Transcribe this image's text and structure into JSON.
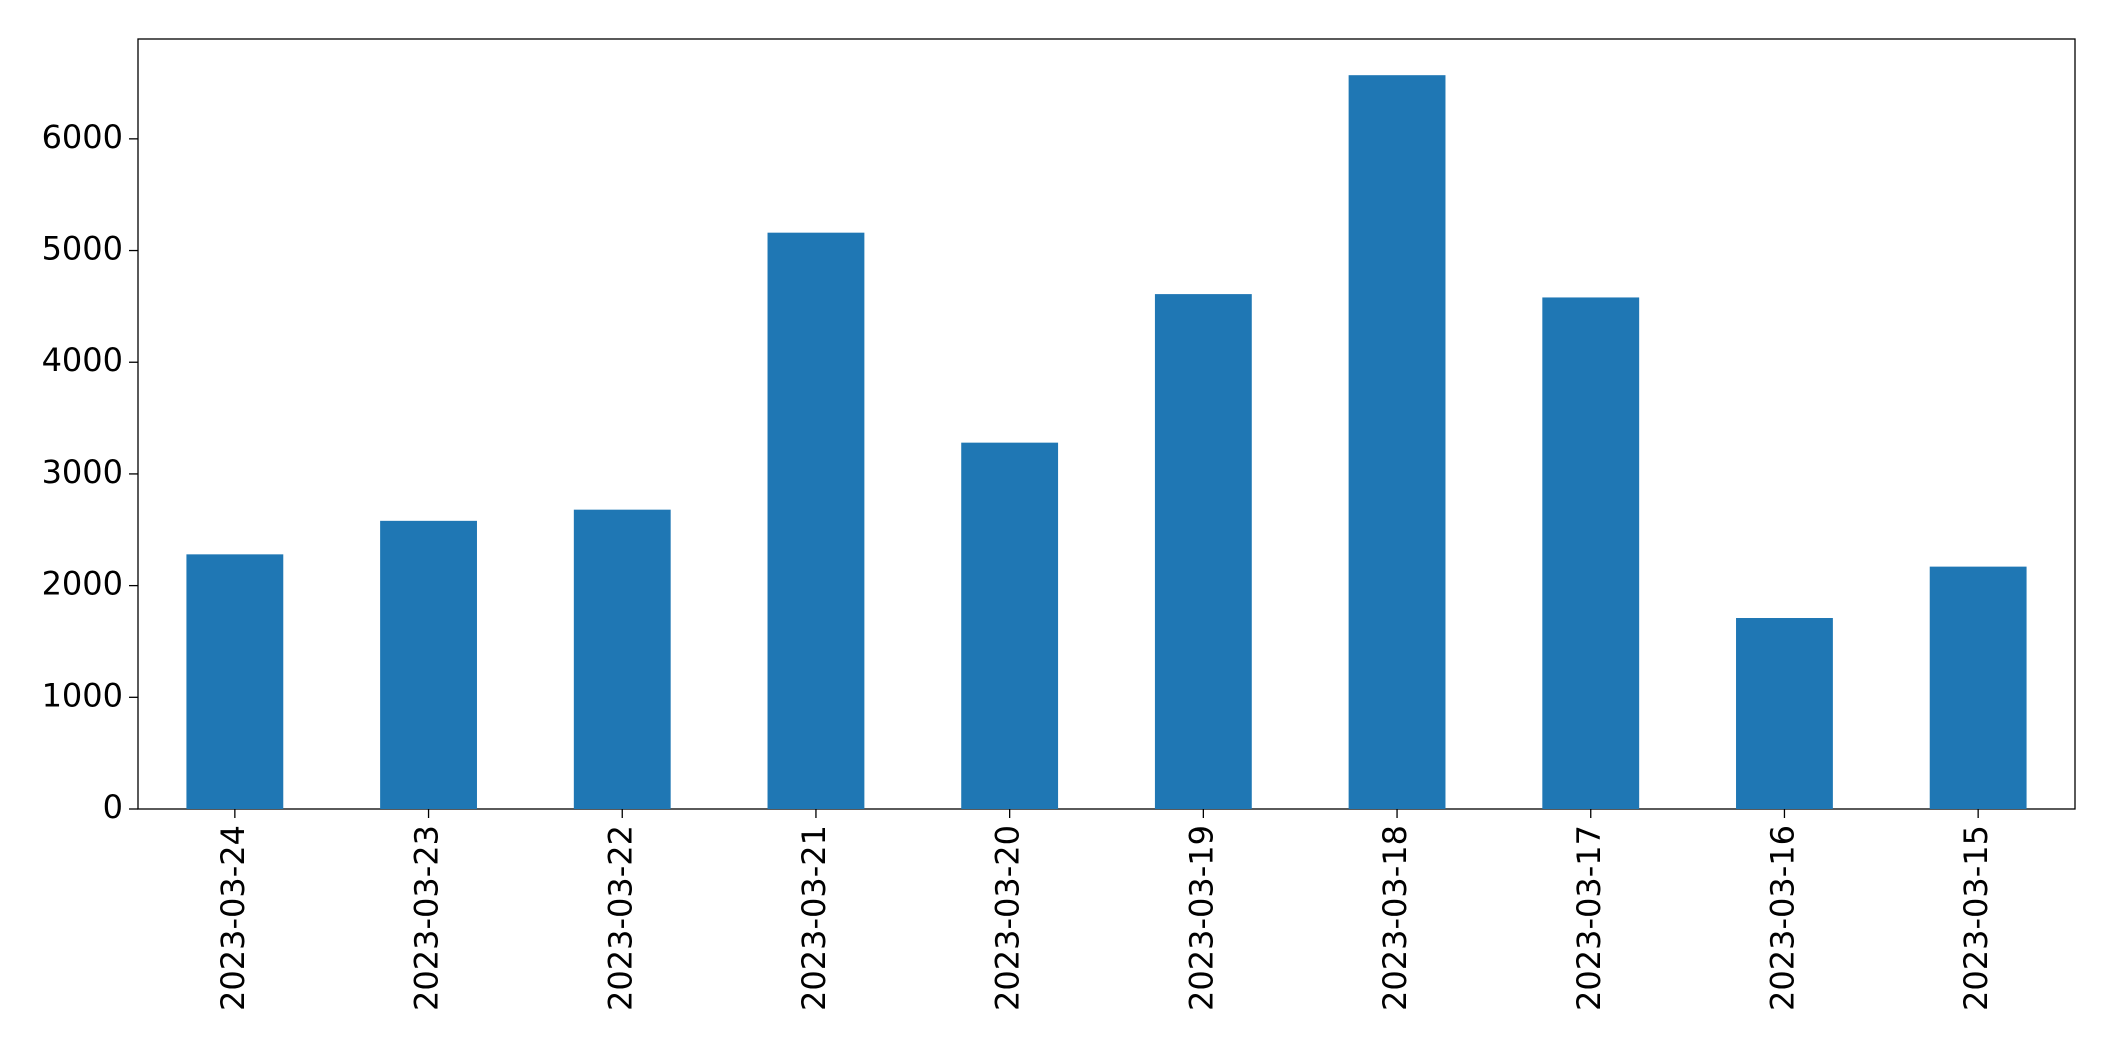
{
  "chart_data": {
    "type": "bar",
    "categories": [
      "2023-03-24",
      "2023-03-23",
      "2023-03-22",
      "2023-03-21",
      "2023-03-20",
      "2023-03-19",
      "2023-03-18",
      "2023-03-17",
      "2023-03-16",
      "2023-03-15"
    ],
    "values": [
      2280,
      2580,
      2680,
      5160,
      3280,
      4610,
      6570,
      4580,
      1710,
      2170
    ],
    "color": "#1f77b4",
    "ylim": [
      0,
      6894
    ],
    "yticks": [
      0,
      1000,
      2000,
      3000,
      4000,
      5000,
      6000
    ],
    "grid": false
  }
}
